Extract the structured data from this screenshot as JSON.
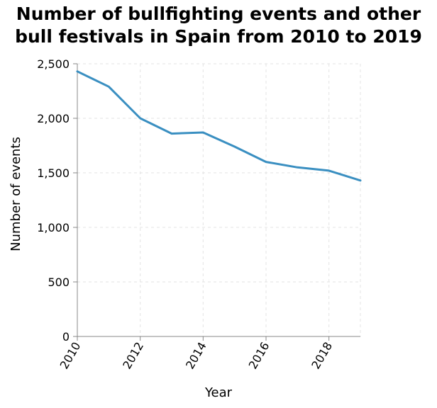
{
  "chart_data": {
    "type": "line",
    "title_lines": [
      "Number of bullfighting events and other",
      "bull festivals in Spain from 2010 to 2019"
    ],
    "xlabel": "Year",
    "ylabel": "Number of events",
    "x": [
      2010,
      2011,
      2012,
      2013,
      2014,
      2015,
      2016,
      2017,
      2018,
      2019
    ],
    "series": [
      {
        "values": [
          2430,
          2290,
          2000,
          1860,
          1870,
          1740,
          1600,
          1550,
          1520,
          1430
        ]
      }
    ],
    "xlim": [
      2010,
      2019
    ],
    "ylim": [
      0,
      2500
    ],
    "x_ticks": [
      2010,
      2012,
      2014,
      2016,
      2018
    ],
    "x_tick_labels": [
      "2010",
      "2012",
      "2014",
      "2016",
      "2018"
    ],
    "y_ticks": [
      0,
      500,
      1000,
      1500,
      2000,
      2500
    ],
    "y_tick_labels": [
      "0",
      "500",
      "1,000",
      "1,500",
      "2,000",
      "2,500"
    ],
    "grid": true,
    "line_color": "#3a8fc1",
    "grid_color": "#e3e3e3",
    "axis_color": "#888888"
  }
}
